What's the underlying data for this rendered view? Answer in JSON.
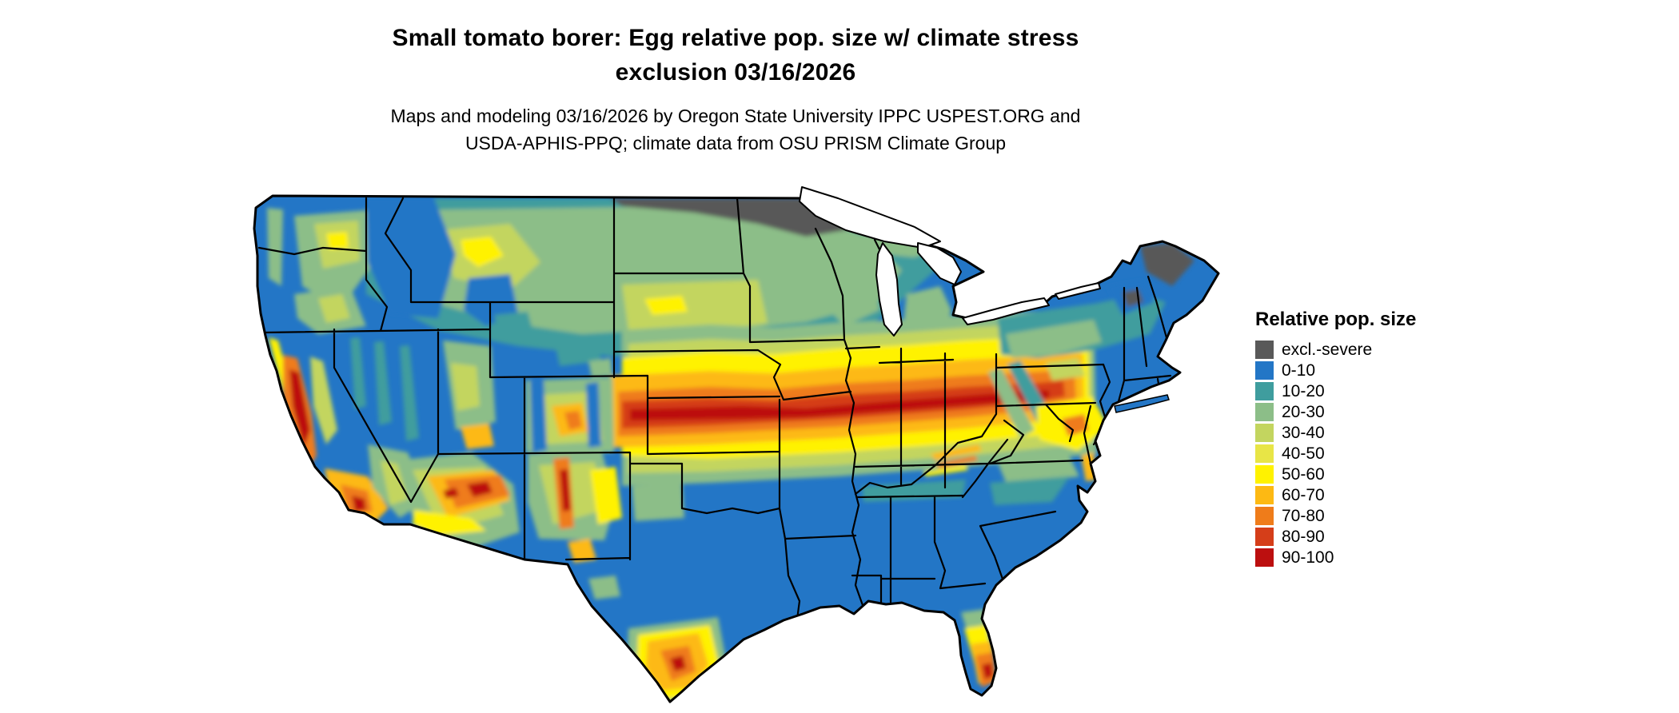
{
  "header": {
    "title_line1": "Small tomato borer: Egg relative pop. size w/ climate stress",
    "title_line2": "exclusion 03/16/2026",
    "subtitle_line1": "Maps and modeling 03/16/2026 by Oregon State University IPPC USPEST.ORG and",
    "subtitle_line2": "USDA-APHIS-PPQ; climate data from OSU PRISM Climate Group"
  },
  "legend": {
    "title": "Relative pop. size",
    "items": [
      {
        "label": "excl.-severe",
        "color": "#595959"
      },
      {
        "label": "0-10",
        "color": "#2376c6"
      },
      {
        "label": "10-20",
        "color": "#3f9d9e"
      },
      {
        "label": "20-30",
        "color": "#8cbe88"
      },
      {
        "label": "30-40",
        "color": "#c3d55f"
      },
      {
        "label": "40-50",
        "color": "#e8e546"
      },
      {
        "label": "50-60",
        "color": "#fff200"
      },
      {
        "label": "60-70",
        "color": "#fdb913"
      },
      {
        "label": "70-80",
        "color": "#ef7c1a"
      },
      {
        "label": "80-90",
        "color": "#d53e19"
      },
      {
        "label": "90-100",
        "color": "#bc0f0f"
      }
    ]
  }
}
